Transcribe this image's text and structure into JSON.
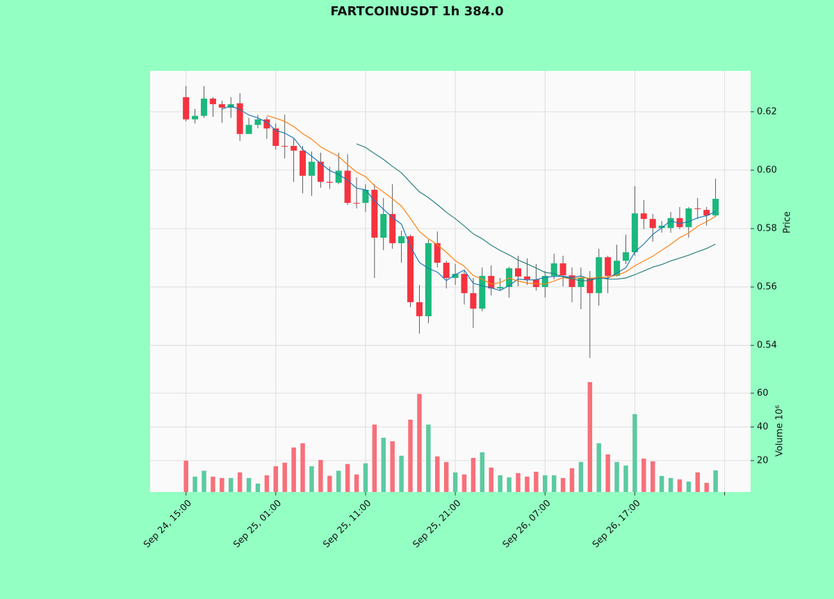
{
  "chart_data": {
    "type": "candlestick",
    "title": "FARTCOINUSDT 1h 384.0",
    "ylabel": "Price",
    "volume_label": "Volume  10⁶",
    "up_color": "#1bb87c",
    "down_color": "#f5333f",
    "volume_up_color": "#5ccaa0",
    "volume_down_color": "#f7707a",
    "grid": true,
    "open": [
      0.625,
      0.6174,
      0.6186,
      0.6245,
      0.6226,
      0.6214,
      0.6229,
      0.6124,
      0.6155,
      0.6174,
      0.6143,
      0.6083,
      0.6083,
      0.6067,
      0.5981,
      0.6029,
      0.596,
      0.5957,
      0.5998,
      0.5888,
      0.5888,
      0.5933,
      0.5769,
      0.585,
      0.575,
      0.5774,
      0.5548,
      0.55,
      0.575,
      0.5683,
      0.5631,
      0.5645,
      0.5579,
      0.5526,
      0.5638,
      0.5595,
      0.56,
      0.5664,
      0.5636,
      0.5626,
      0.56,
      0.5638,
      0.5681,
      0.564,
      0.56,
      0.5631,
      0.5579,
      0.5702,
      0.5638,
      0.569,
      0.5719,
      0.5852,
      0.5833,
      0.5802,
      0.5802,
      0.5836,
      0.5805,
      0.5869,
      0.5864,
      0.5845
    ],
    "high": [
      0.6288,
      0.621,
      0.6288,
      0.625,
      0.6238,
      0.625,
      0.6264,
      0.6179,
      0.619,
      0.6183,
      0.616,
      0.619,
      0.6107,
      0.6083,
      0.6064,
      0.606,
      0.6012,
      0.606,
      0.6055,
      0.5976,
      0.5952,
      0.5952,
      0.5905,
      0.5952,
      0.5793,
      0.5779,
      0.5607,
      0.5762,
      0.579,
      0.569,
      0.5679,
      0.5655,
      0.5631,
      0.5667,
      0.5674,
      0.5631,
      0.5669,
      0.5707,
      0.5698,
      0.5679,
      0.5655,
      0.5714,
      0.5707,
      0.5667,
      0.5667,
      0.5655,
      0.5731,
      0.5707,
      0.5745,
      0.5779,
      0.5945,
      0.5898,
      0.585,
      0.5826,
      0.5857,
      0.5874,
      0.5874,
      0.5905,
      0.5874,
      0.5971
    ],
    "low": [
      0.6167,
      0.616,
      0.6179,
      0.6183,
      0.6162,
      0.6179,
      0.61,
      0.6124,
      0.6143,
      0.6107,
      0.6071,
      0.604,
      0.596,
      0.5921,
      0.5912,
      0.594,
      0.5936,
      0.5952,
      0.5881,
      0.5869,
      0.5857,
      0.5631,
      0.5726,
      0.5731,
      0.5683,
      0.5531,
      0.544,
      0.5476,
      0.5667,
      0.5595,
      0.5607,
      0.554,
      0.546,
      0.5517,
      0.5571,
      0.5588,
      0.5564,
      0.5602,
      0.5607,
      0.5588,
      0.5564,
      0.5626,
      0.5602,
      0.5548,
      0.5524,
      0.5357,
      0.5536,
      0.5579,
      0.5636,
      0.5679,
      0.5707,
      0.5798,
      0.5755,
      0.5786,
      0.5786,
      0.5798,
      0.5769,
      0.5833,
      0.581,
      0.584
    ],
    "close": [
      0.6174,
      0.6186,
      0.6245,
      0.6226,
      0.6214,
      0.6226,
      0.6124,
      0.6155,
      0.6174,
      0.6143,
      0.6083,
      0.6081,
      0.6067,
      0.5981,
      0.6029,
      0.596,
      0.5957,
      0.5998,
      0.5888,
      0.5886,
      0.5933,
      0.5769,
      0.585,
      0.575,
      0.5774,
      0.5548,
      0.55,
      0.575,
      0.5683,
      0.5631,
      0.5645,
      0.5579,
      0.5526,
      0.5638,
      0.5595,
      0.56,
      0.5664,
      0.5636,
      0.5626,
      0.56,
      0.5638,
      0.5681,
      0.564,
      0.56,
      0.5631,
      0.5579,
      0.5702,
      0.5638,
      0.569,
      0.5719,
      0.5852,
      0.5833,
      0.5802,
      0.581,
      0.5836,
      0.5805,
      0.5869,
      0.5867,
      0.5845,
      0.5902
    ],
    "volume": [
      20,
      10.5,
      14,
      10.5,
      9.7,
      9.7,
      13,
      9.7,
      6.4,
      11.3,
      16.7,
      18.8,
      27.8,
      30.3,
      16.7,
      20.4,
      11,
      14,
      18,
      11.8,
      18.4,
      41.4,
      33.6,
      31.5,
      22.9,
      44.3,
      59.6,
      41.4,
      22.5,
      19.2,
      13,
      11.8,
      21.6,
      25,
      15.9,
      11.3,
      10.1,
      12.6,
      10.5,
      13.4,
      11.3,
      11.3,
      9.7,
      15.5,
      19.2,
      66.6,
      30.3,
      23.7,
      19.2,
      17.1,
      47.6,
      21.2,
      19.6,
      10.9,
      9.7,
      8.9,
      7.6,
      13,
      6.8,
      14.2
    ],
    "series": [
      {
        "color": "#1f77b4",
        "values": [
          null,
          null,
          null,
          null,
          0.6209,
          0.622,
          0.6207,
          0.6189,
          0.6179,
          0.6164,
          0.6136,
          0.6127,
          0.611,
          0.6071,
          0.6048,
          0.6023,
          0.5999,
          0.5985,
          0.5966,
          0.5938,
          0.5933,
          0.5895,
          0.5866,
          0.5838,
          0.5815,
          0.5738,
          0.5684,
          0.5664,
          0.5651,
          0.5622,
          0.5642,
          0.5658,
          0.5613,
          0.5604,
          0.5597,
          0.5588,
          0.5605,
          0.5627,
          0.5624,
          0.5625,
          0.5633,
          0.5636,
          0.5637,
          0.5632,
          0.5638,
          0.5626,
          0.563,
          0.563,
          0.5648,
          0.5666,
          0.572,
          0.5747,
          0.578,
          0.5803,
          0.5827,
          0.5817,
          0.5824,
          0.5837,
          0.5844,
          0.5858
        ]
      },
      {
        "color": "#ff7f0e",
        "values": [
          null,
          null,
          null,
          null,
          null,
          null,
          null,
          null,
          null,
          0.6187,
          0.6178,
          0.6167,
          0.6149,
          0.6125,
          0.6106,
          0.608,
          0.6063,
          0.6047,
          0.6019,
          0.5993,
          0.5978,
          0.5947,
          0.5925,
          0.5902,
          0.5877,
          0.5835,
          0.579,
          0.5765,
          0.5745,
          0.5719,
          0.569,
          0.5671,
          0.5639,
          0.5627,
          0.561,
          0.5615,
          0.5631,
          0.562,
          0.5614,
          0.5611,
          0.561,
          0.562,
          0.5632,
          0.5628,
          0.5632,
          0.563,
          0.5633,
          0.5634,
          0.564,
          0.5652,
          0.5673,
          0.5689,
          0.5705,
          0.5726,
          0.5746,
          0.5769,
          0.5785,
          0.5808,
          0.5824,
          0.5842
        ]
      },
      {
        "color": "#2a7f7a",
        "values": [
          null,
          null,
          null,
          null,
          null,
          null,
          null,
          null,
          null,
          null,
          null,
          null,
          null,
          null,
          null,
          null,
          null,
          null,
          null,
          0.609,
          0.6078,
          0.6057,
          0.6037,
          0.6013,
          0.5991,
          0.5958,
          0.5926,
          0.5906,
          0.5882,
          0.5856,
          0.5834,
          0.5809,
          0.5782,
          0.5765,
          0.5743,
          0.5725,
          0.571,
          0.5692,
          0.5679,
          0.5665,
          0.565,
          0.5646,
          0.5635,
          0.5628,
          0.5621,
          0.5622,
          0.5632,
          0.5627,
          0.5627,
          0.5631,
          0.5642,
          0.5655,
          0.5668,
          0.5677,
          0.5689,
          0.5699,
          0.5709,
          0.5721,
          0.5732,
          0.5747
        ]
      }
    ],
    "xlim": [
      -4,
      62.9
    ],
    "xticks": [
      {
        "value": 0,
        "label": "Sep 24, 15:00"
      },
      {
        "value": 10,
        "label": "Sep 25, 01:00"
      },
      {
        "value": 20,
        "label": "Sep 25, 11:00"
      },
      {
        "value": 30,
        "label": "Sep 25, 21:00"
      },
      {
        "value": 40,
        "label": "Sep 26, 07:00"
      },
      {
        "value": 50,
        "label": "Sep 26, 17:00"
      },
      {
        "value": 60,
        "label": null
      }
    ],
    "ylim": [
      0.5286,
      0.634
    ],
    "yticks": [
      0.54,
      0.56,
      0.58,
      {
        "value": 0.6,
        "label": "0.60"
      },
      0.62
    ],
    "volume_ylim": [
      1.4,
      68.6
    ],
    "volume_yticks": [
      20,
      40,
      60
    ]
  }
}
